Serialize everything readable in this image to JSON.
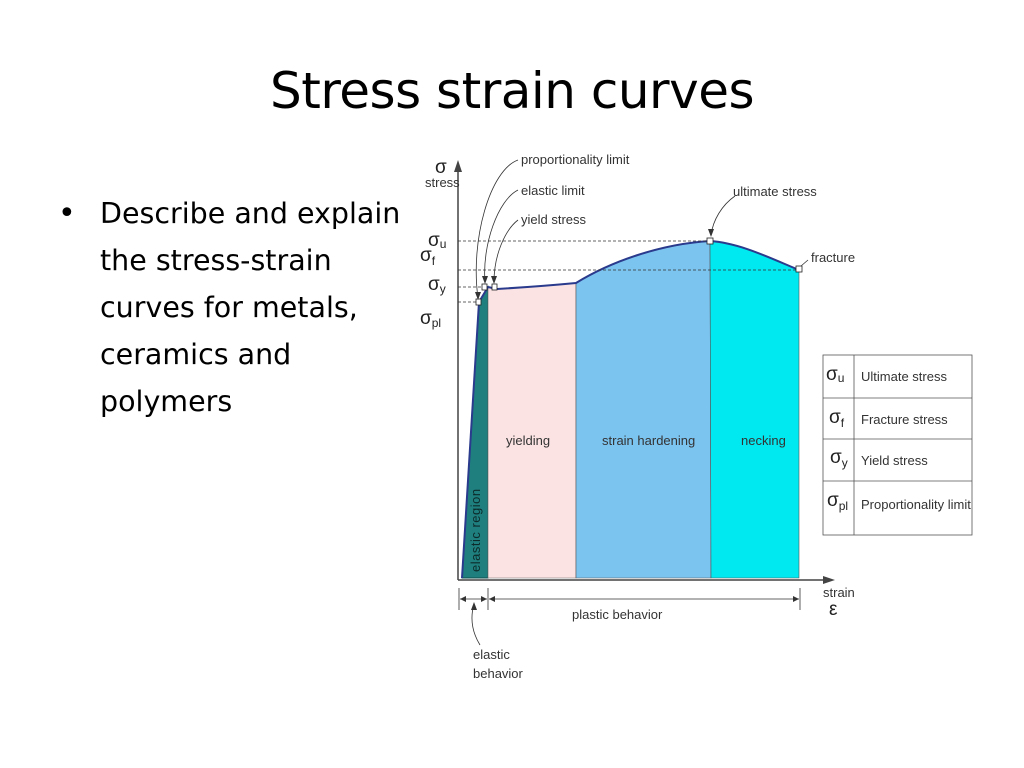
{
  "title": "Stress strain curves",
  "bullets": [
    "Describe and explain the stress-strain curves for metals, ceramics and polymers"
  ],
  "diagram": {
    "axes": {
      "y_symbol": "σ",
      "y_label": "stress",
      "x_label": "strain",
      "x_symbol": "ε"
    },
    "callouts": {
      "proportionality_limit": "proportionality limit",
      "elastic_limit": "elastic limit",
      "yield_stress": "yield stress",
      "ultimate_stress": "ultimate stress",
      "fracture": "fracture"
    },
    "y_ticks": [
      {
        "sym": "σ",
        "sub": "u"
      },
      {
        "sym": "σ",
        "sub": "f"
      },
      {
        "sym": "σ",
        "sub": "y"
      },
      {
        "sym": "σ",
        "sub": "pl"
      }
    ],
    "regions": {
      "elastic": "elastic region",
      "yielding": "yielding",
      "strain_hardening": "strain hardening",
      "necking": "necking"
    },
    "behaviors": {
      "plastic": "plastic behavior",
      "elastic_line1": "elastic",
      "elastic_line2": "behavior"
    },
    "colors": {
      "elastic": "#1f7f7f",
      "yielding": "#fbe3e3",
      "strain_hardening": "#7cc4f0",
      "necking": "#00e8f0",
      "curve": "#2a3a8c"
    },
    "legend": [
      {
        "sym": "σ",
        "sub": "u",
        "label": "Ultimate stress"
      },
      {
        "sym": "σ",
        "sub": "f",
        "label": "Fracture stress"
      },
      {
        "sym": "σ",
        "sub": "y",
        "label": "Yield stress"
      },
      {
        "sym": "σ",
        "sub": "pl",
        "label": "Proportionality limit"
      }
    ]
  }
}
